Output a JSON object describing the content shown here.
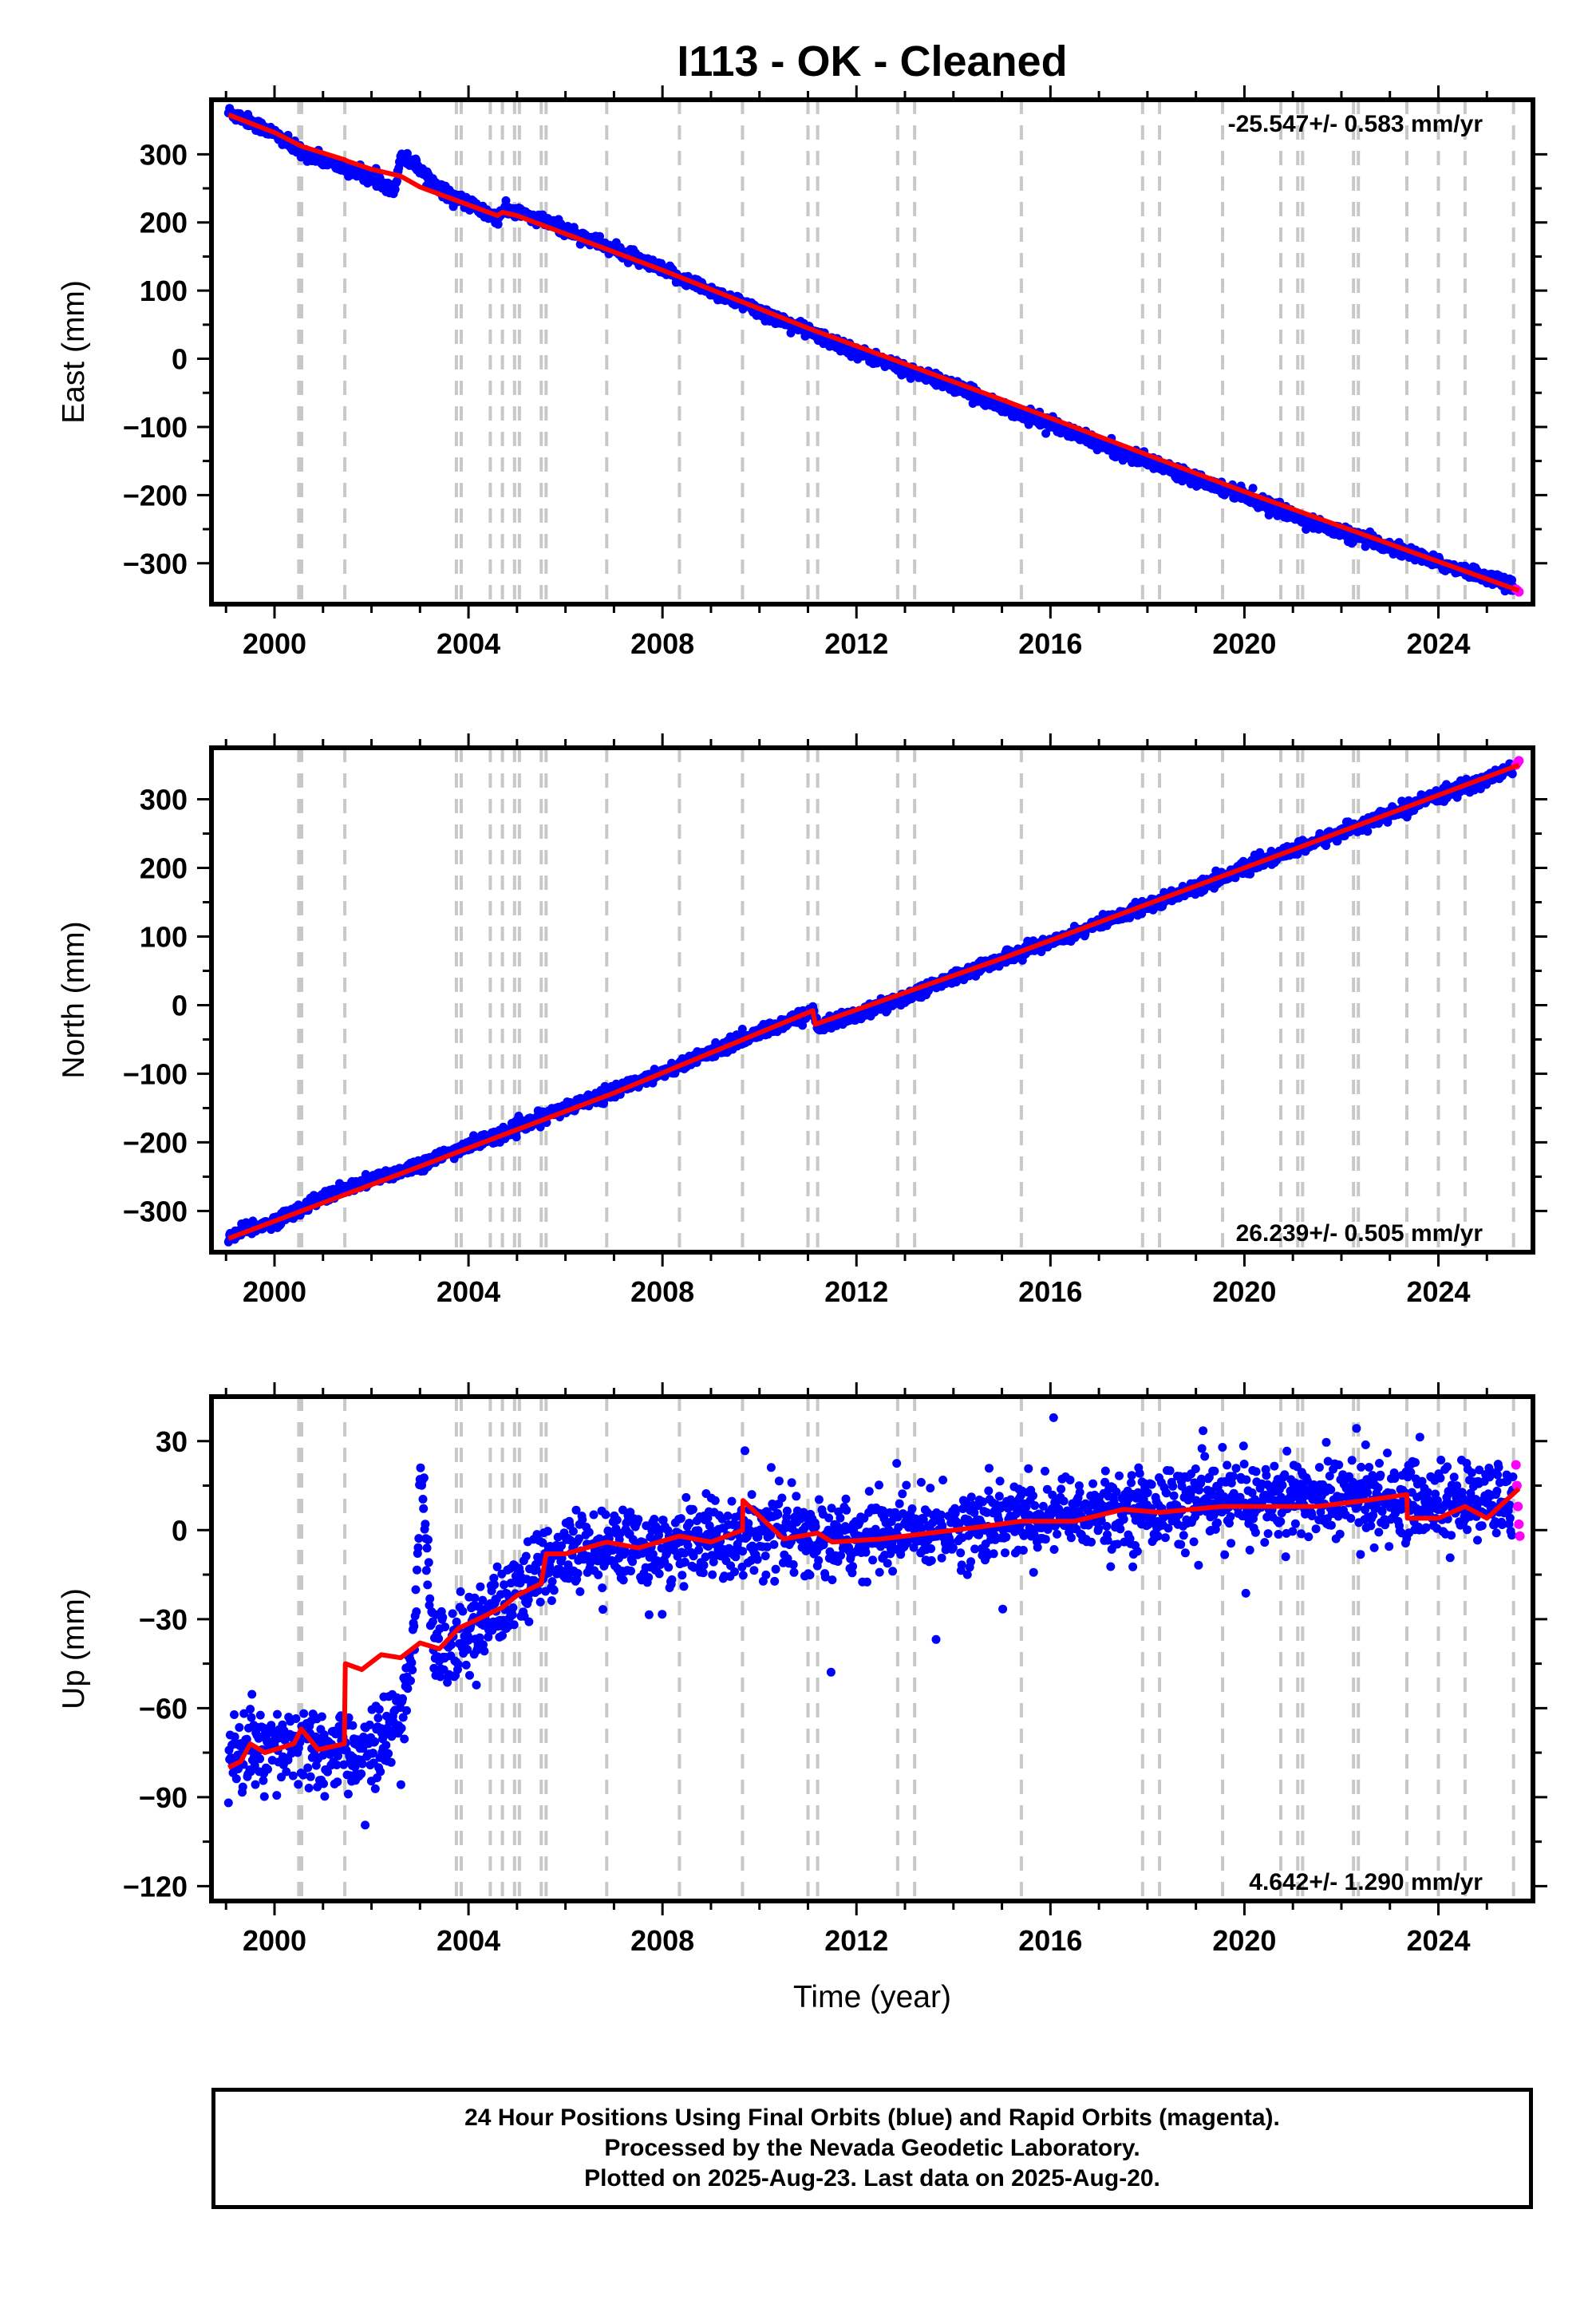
{
  "title": "I113  - OK - Cleaned",
  "x_axis_label": "Time (year)",
  "caption": [
    "24 Hour Positions Using Final Orbits (blue) and Rapid Orbits (magenta).",
    "Processed by the Nevada Geodetic Laboratory.",
    "Plotted on 2025-Aug-23. Last data on 2025-Aug-20."
  ],
  "colors": {
    "final": "#0000ff",
    "rapid": "#ff00ff",
    "model": "#ff0000",
    "step_lines": "#c8c8c8",
    "frame": "#000000"
  },
  "chart_data": [
    {
      "type": "scatter",
      "ylabel": "East (mm)",
      "rate_label": "-25.547+/- 0.583 mm/yr",
      "xlim": [
        1998.7,
        2025.95
      ],
      "ylim": [
        -360,
        380
      ],
      "xticks": [
        2000,
        2004,
        2008,
        2012,
        2016,
        2020,
        2024
      ],
      "yticks": [
        -300,
        -200,
        -100,
        0,
        100,
        200,
        300
      ],
      "grid": false,
      "step_epochs": [
        2000.5,
        2000.56,
        2001.45,
        2003.75,
        2003.85,
        2004.45,
        2004.7,
        2004.95,
        2005.05,
        2005.5,
        2005.6,
        2006.85,
        2008.35,
        2009.65,
        2011.0,
        2011.2,
        2012.85,
        2013.2,
        2015.4,
        2017.9,
        2018.25,
        2019.55,
        2020.75,
        2021.1,
        2021.2,
        2022.25,
        2022.35,
        2023.35,
        2024.0,
        2024.55,
        2025.55
      ],
      "series": [
        {
          "name": "Final Orbits",
          "color": "#0000ff",
          "x": [
            1999.05,
            1999.5,
            2000.0,
            2000.5,
            2001.0,
            2001.5,
            2002.0,
            2002.5,
            2002.6,
            2002.9,
            2003.5,
            2004.0,
            2004.6,
            2004.7,
            2005.0,
            2006.0,
            2007.0,
            2008.0,
            2009.0,
            2010.0,
            2011.0,
            2012.0,
            2013.0,
            2014.0,
            2015.0,
            2016.0,
            2017.0,
            2018.0,
            2019.0,
            2020.0,
            2021.0,
            2022.0,
            2023.0,
            2024.0,
            2025.0,
            2025.55
          ],
          "y": [
            362,
            348,
            330,
            305,
            292,
            278,
            265,
            250,
            298,
            285,
            245,
            227,
            205,
            218,
            215,
            190,
            160,
            130,
            100,
            70,
            40,
            10,
            -15,
            -40,
            -70,
            -95,
            -125,
            -150,
            -175,
            -200,
            -230,
            -255,
            -275,
            -300,
            -320,
            -333
          ]
        },
        {
          "name": "Rapid Orbits",
          "color": "#ff00ff",
          "x": [
            2025.6,
            2025.63,
            2025.66
          ],
          "y": [
            -338,
            -340,
            -342
          ]
        }
      ],
      "model": {
        "x": [
          1999.05,
          2000.0,
          2000.55,
          2001.45,
          2001.5,
          2002.0,
          2002.6,
          2003.0,
          2004.6,
          2004.7,
          2005.0,
          2008.0,
          2011.0,
          2015.0,
          2020.0,
          2025.66
        ],
        "y": [
          358,
          332,
          312,
          292,
          290,
          278,
          268,
          252,
          210,
          215,
          210,
          130,
          45,
          -60,
          -195,
          -340
        ]
      }
    },
    {
      "type": "scatter",
      "ylabel": "North (mm)",
      "rate_label": "26.239+/- 0.505 mm/yr",
      "xlim": [
        1998.7,
        2025.95
      ],
      "ylim": [
        -360,
        375
      ],
      "xticks": [
        2000,
        2004,
        2008,
        2012,
        2016,
        2020,
        2024
      ],
      "yticks": [
        -300,
        -200,
        -100,
        0,
        100,
        200,
        300
      ],
      "grid": false,
      "step_epochs": [
        2000.5,
        2000.56,
        2001.45,
        2003.75,
        2003.85,
        2004.45,
        2004.7,
        2004.95,
        2005.05,
        2005.5,
        2005.6,
        2006.85,
        2008.35,
        2009.65,
        2011.0,
        2011.2,
        2012.85,
        2013.2,
        2015.4,
        2017.9,
        2018.25,
        2019.55,
        2020.75,
        2021.1,
        2021.2,
        2022.25,
        2022.35,
        2023.35,
        2024.0,
        2024.55,
        2025.55
      ],
      "series": [
        {
          "name": "Final Orbits",
          "color": "#0000ff",
          "x": [
            1999.05,
            2000.0,
            2001.0,
            2002.0,
            2003.0,
            2004.0,
            2005.0,
            2006.0,
            2007.0,
            2008.0,
            2009.0,
            2010.0,
            2011.1,
            2011.2,
            2012.0,
            2013.0,
            2014.0,
            2015.0,
            2016.0,
            2017.0,
            2018.0,
            2019.0,
            2020.0,
            2021.0,
            2022.0,
            2023.0,
            2024.0,
            2025.0,
            2025.55
          ],
          "y": [
            -338,
            -315,
            -280,
            -255,
            -232,
            -205,
            -180,
            -150,
            -125,
            -98,
            -68,
            -40,
            -10,
            -30,
            -15,
            12,
            40,
            68,
            92,
            118,
            145,
            172,
            200,
            225,
            252,
            278,
            305,
            330,
            345
          ]
        },
        {
          "name": "Rapid Orbits",
          "color": "#ff00ff",
          "x": [
            2025.6,
            2025.63,
            2025.66
          ],
          "y": [
            350,
            353,
            356
          ]
        }
      ],
      "model": {
        "x": [
          1999.05,
          2003.0,
          2007.0,
          2011.1,
          2011.15,
          2015.0,
          2020.0,
          2025.66
        ],
        "y": [
          -340,
          -235,
          -128,
          -8,
          -28,
          68,
          200,
          350
        ]
      }
    },
    {
      "type": "scatter",
      "ylabel": "Up (mm)",
      "rate_label": "4.642+/- 1.290 mm/yr",
      "xlim": [
        1998.7,
        2025.95
      ],
      "ylim": [
        -125,
        45
      ],
      "xticks": [
        2000,
        2004,
        2008,
        2012,
        2016,
        2020,
        2024
      ],
      "yticks": [
        -120,
        -90,
        -60,
        -30,
        0,
        30
      ],
      "grid": false,
      "step_epochs": [
        2000.5,
        2000.56,
        2001.45,
        2003.75,
        2003.85,
        2004.45,
        2004.7,
        2004.95,
        2005.05,
        2005.5,
        2005.6,
        2006.85,
        2008.35,
        2009.65,
        2011.0,
        2011.2,
        2012.85,
        2013.2,
        2015.4,
        2017.9,
        2018.25,
        2019.55,
        2020.75,
        2021.1,
        2021.2,
        2022.25,
        2022.35,
        2023.35,
        2024.0,
        2024.55,
        2025.55
      ],
      "series": [
        {
          "name": "Final Orbits",
          "color": "#0000ff",
          "x": [
            1999.05,
            1999.5,
            2000.0,
            2000.5,
            2001.0,
            2001.45,
            2001.8,
            2002.3,
            2002.7,
            2002.9,
            2003.0,
            2003.3,
            2003.6,
            2004.0,
            2004.5,
            2005.0,
            2005.6,
            2006.5,
            2007.5,
            2008.5,
            2009.5,
            2010.5,
            2011.5,
            2012.5,
            2013.5,
            2014.5,
            2015.5,
            2016.5,
            2017.5,
            2018.5,
            2019.5,
            2020.5,
            2021.5,
            2022.5,
            2023.5,
            2024.5,
            2025.55
          ],
          "y": [
            -78,
            -73,
            -75,
            -72,
            -76,
            -74,
            -75,
            -72,
            -55,
            -35,
            20,
            -40,
            -38,
            -35,
            -28,
            -22,
            -10,
            -8,
            -6,
            -5,
            -2,
            -2,
            -3,
            -1,
            0,
            2,
            4,
            5,
            7,
            8,
            9,
            10,
            11,
            11,
            10,
            9,
            10
          ]
        },
        {
          "name": "Rapid Orbits",
          "color": "#ff00ff",
          "x": [
            2025.6,
            2025.62,
            2025.64,
            2025.66,
            2025.68
          ],
          "y": [
            22,
            15,
            8,
            2,
            -2
          ]
        }
      ],
      "model": {
        "x": [
          1999.05,
          1999.3,
          1999.5,
          1999.8,
          2000.0,
          2000.4,
          2000.55,
          2000.9,
          2001.44,
          2001.46,
          2001.8,
          2002.2,
          2002.6,
          2003.0,
          2003.4,
          2003.8,
          2004.2,
          2004.7,
          2005.0,
          2005.5,
          2005.6,
          2006.0,
          2006.85,
          2007.5,
          2008.35,
          2009.0,
          2009.65,
          2009.66,
          2010.5,
          2011.2,
          2011.5,
          2012.5,
          2013.5,
          2014.5,
          2015.4,
          2016.5,
          2017.5,
          2018.25,
          2019.55,
          2020.5,
          2021.5,
          2022.5,
          2023.35,
          2023.36,
          2024.0,
          2024.55,
          2025.0,
          2025.66
        ],
        "y": [
          -80,
          -78,
          -72,
          -75,
          -74,
          -72,
          -67,
          -74,
          -72,
          -45,
          -47,
          -42,
          -43,
          -38,
          -40,
          -33,
          -30,
          -26,
          -22,
          -18,
          -8,
          -8,
          -4,
          -6,
          -2,
          -4,
          0,
          10,
          -3,
          -1,
          -4,
          -3,
          -1,
          1,
          3,
          3,
          7,
          6,
          8,
          8,
          8,
          10,
          12,
          4,
          4,
          8,
          4,
          14
        ]
      }
    }
  ]
}
